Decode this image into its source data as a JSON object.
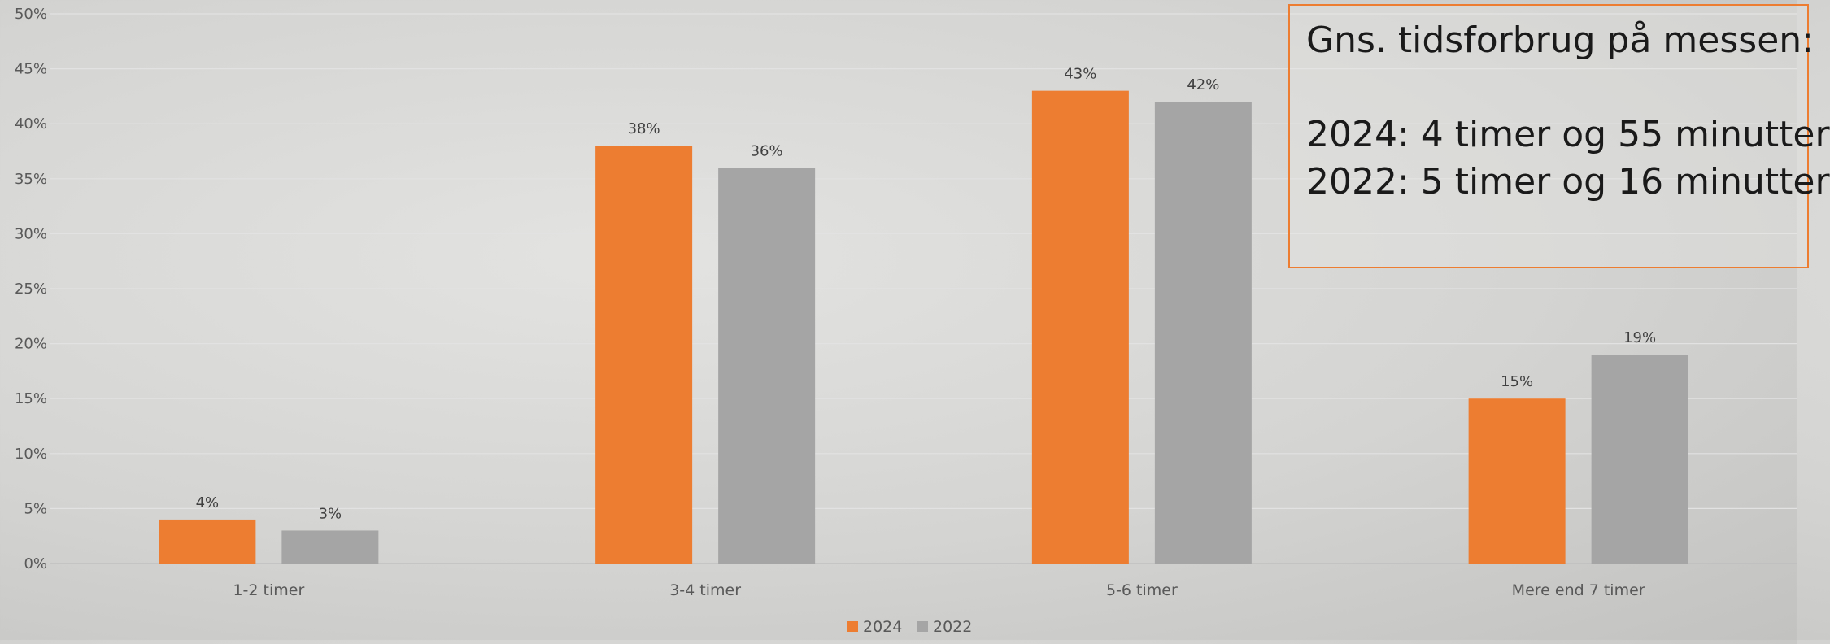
{
  "chart_data": {
    "type": "bar",
    "categories": [
      "1-2 timer",
      "3-4 timer",
      "5-6 timer",
      "Mere end 7 timer"
    ],
    "series": [
      {
        "name": "2024",
        "values": [
          4,
          38,
          43,
          15
        ],
        "labels": [
          "4%",
          "38%",
          "43%",
          "15%"
        ],
        "color": "#ED7D31"
      },
      {
        "name": "2022",
        "values": [
          3,
          36,
          42,
          19
        ],
        "labels": [
          "3%",
          "36%",
          "42%",
          "19%"
        ],
        "color": "#A5A5A5"
      }
    ],
    "ylim": [
      0,
      50
    ],
    "yticks": [
      0,
      5,
      10,
      15,
      20,
      25,
      30,
      35,
      40,
      45,
      50
    ],
    "ytick_labels": [
      "0%",
      "5%",
      "10%",
      "15%",
      "20%",
      "25%",
      "30%",
      "35%",
      "40%",
      "45%",
      "50%"
    ],
    "xlabel": "",
    "ylabel": "",
    "grid": true,
    "legend_position": "bottom"
  },
  "info_box": {
    "title": "Gns. tidsforbrug på messen:",
    "line_2024": "2024: 4 timer og 55 minutter",
    "line_2022": "2022: 5 timer og 16 minutter"
  },
  "colors": {
    "accent": "#ED7D31",
    "secondary": "#A5A5A5",
    "text": "#595959"
  }
}
